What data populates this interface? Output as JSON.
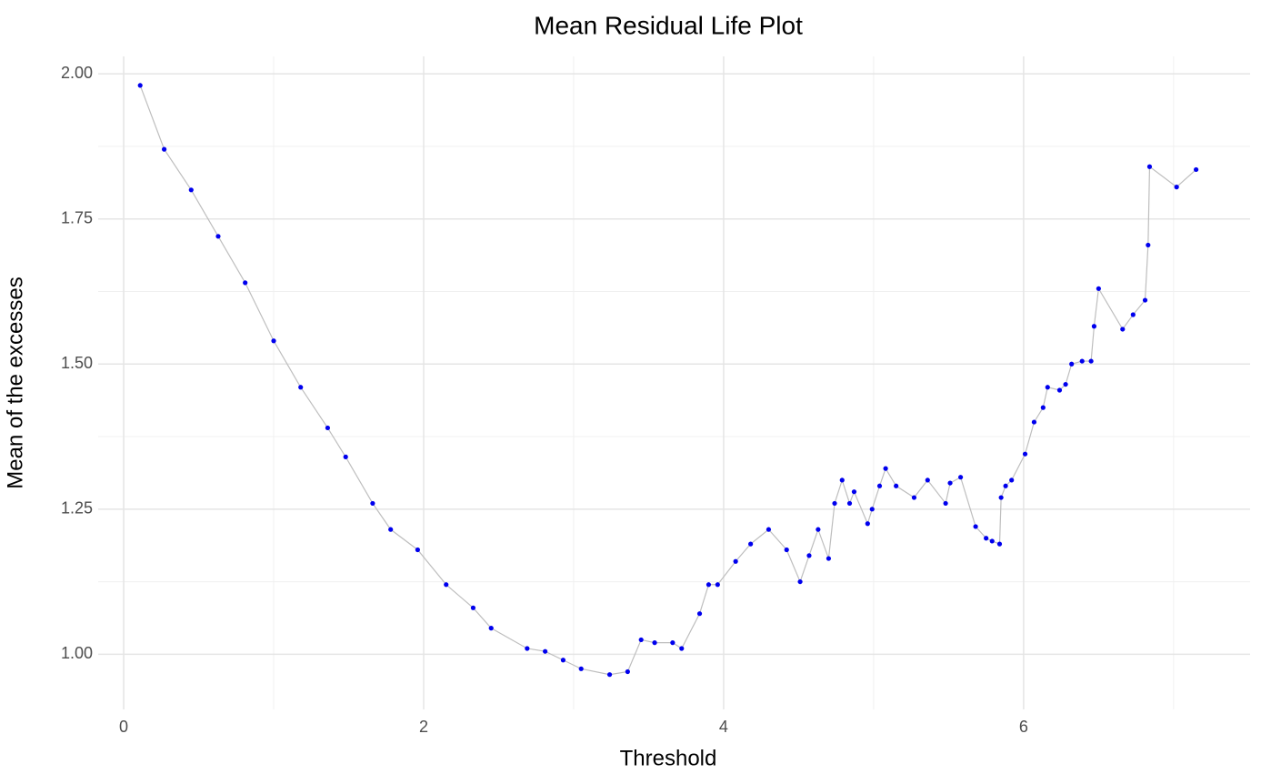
{
  "chart_data": {
    "type": "line",
    "title": "Mean Residual Life Plot",
    "x_label": "Threshold",
    "y_label": "Mean of the excesses",
    "x": [
      0.11,
      0.27,
      0.45,
      0.63,
      0.81,
      1.0,
      1.18,
      1.36,
      1.48,
      1.66,
      1.78,
      1.96,
      2.15,
      2.33,
      2.45,
      2.69,
      2.81,
      2.93,
      3.05,
      3.24,
      3.36,
      3.45,
      3.54,
      3.66,
      3.72,
      3.84,
      3.9,
      3.96,
      4.08,
      4.18,
      4.3,
      4.42,
      4.51,
      4.57,
      4.63,
      4.7,
      4.74,
      4.79,
      4.84,
      4.87,
      4.96,
      4.99,
      5.04,
      5.08,
      5.15,
      5.27,
      5.36,
      5.48,
      5.51,
      5.58,
      5.68,
      5.75,
      5.79,
      5.84,
      5.85,
      5.88,
      5.92,
      6.01,
      6.07,
      6.13,
      6.16,
      6.24,
      6.28,
      6.32,
      6.39,
      6.45,
      6.47,
      6.5,
      6.66,
      6.73,
      6.81,
      6.83,
      6.84,
      7.02,
      7.15
    ],
    "series": [
      {
        "line_color": "#bebebe",
        "color": "#0000ee",
        "values": [
          1.98,
          1.87,
          1.8,
          1.72,
          1.64,
          1.54,
          1.46,
          1.39,
          1.34,
          1.26,
          1.215,
          1.18,
          1.12,
          1.08,
          1.045,
          1.01,
          1.005,
          0.99,
          0.975,
          0.965,
          0.97,
          1.025,
          1.02,
          1.02,
          1.01,
          1.07,
          1.12,
          1.12,
          1.16,
          1.19,
          1.215,
          1.18,
          1.125,
          1.17,
          1.215,
          1.165,
          1.26,
          1.3,
          1.26,
          1.28,
          1.225,
          1.25,
          1.29,
          1.32,
          1.29,
          1.27,
          1.3,
          1.26,
          1.295,
          1.305,
          1.22,
          1.2,
          1.195,
          1.19,
          1.27,
          1.29,
          1.3,
          1.345,
          1.4,
          1.425,
          1.46,
          1.455,
          1.465,
          1.5,
          1.505,
          1.505,
          1.565,
          1.63,
          1.56,
          1.585,
          1.61,
          1.705,
          1.84,
          1.805,
          1.835
        ]
      }
    ],
    "xlim": [
      -0.17,
      7.51
    ],
    "ylim": [
      0.905,
      2.03
    ],
    "xticks": [
      0,
      2,
      4,
      6
    ],
    "yticks": [
      {
        "value": 1,
        "label": "1.00"
      },
      {
        "value": 1.25,
        "label": "1.25"
      },
      {
        "value": 1.5,
        "label": "1.50"
      },
      {
        "value": 1.75,
        "label": "1.75"
      },
      {
        "value": 2,
        "label": "2.00"
      }
    ],
    "x_minor_grid": [
      1,
      3,
      5,
      7
    ],
    "y_minor_grid": [
      1.125,
      1.375,
      1.625,
      1.875
    ],
    "grid": true
  }
}
